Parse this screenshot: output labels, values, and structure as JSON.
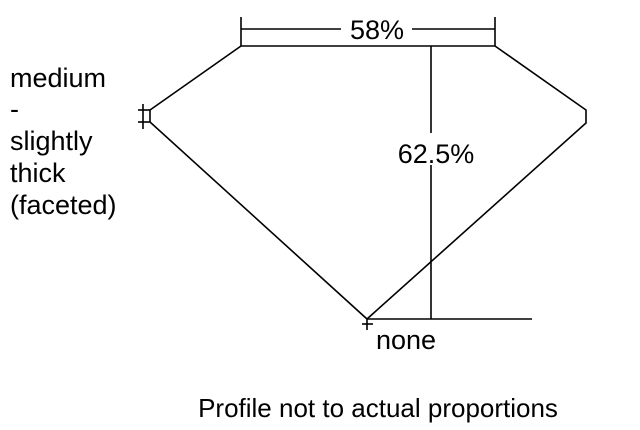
{
  "diagram": {
    "table_label": "58%",
    "depth_label": "62.5%",
    "girdle_label_lines": [
      "medium",
      "-",
      "slightly",
      "thick",
      "(faceted)"
    ],
    "culet_label": "none",
    "caption": "Profile not to actual proportions",
    "line_color": "#000000",
    "background_color": "#ffffff"
  }
}
